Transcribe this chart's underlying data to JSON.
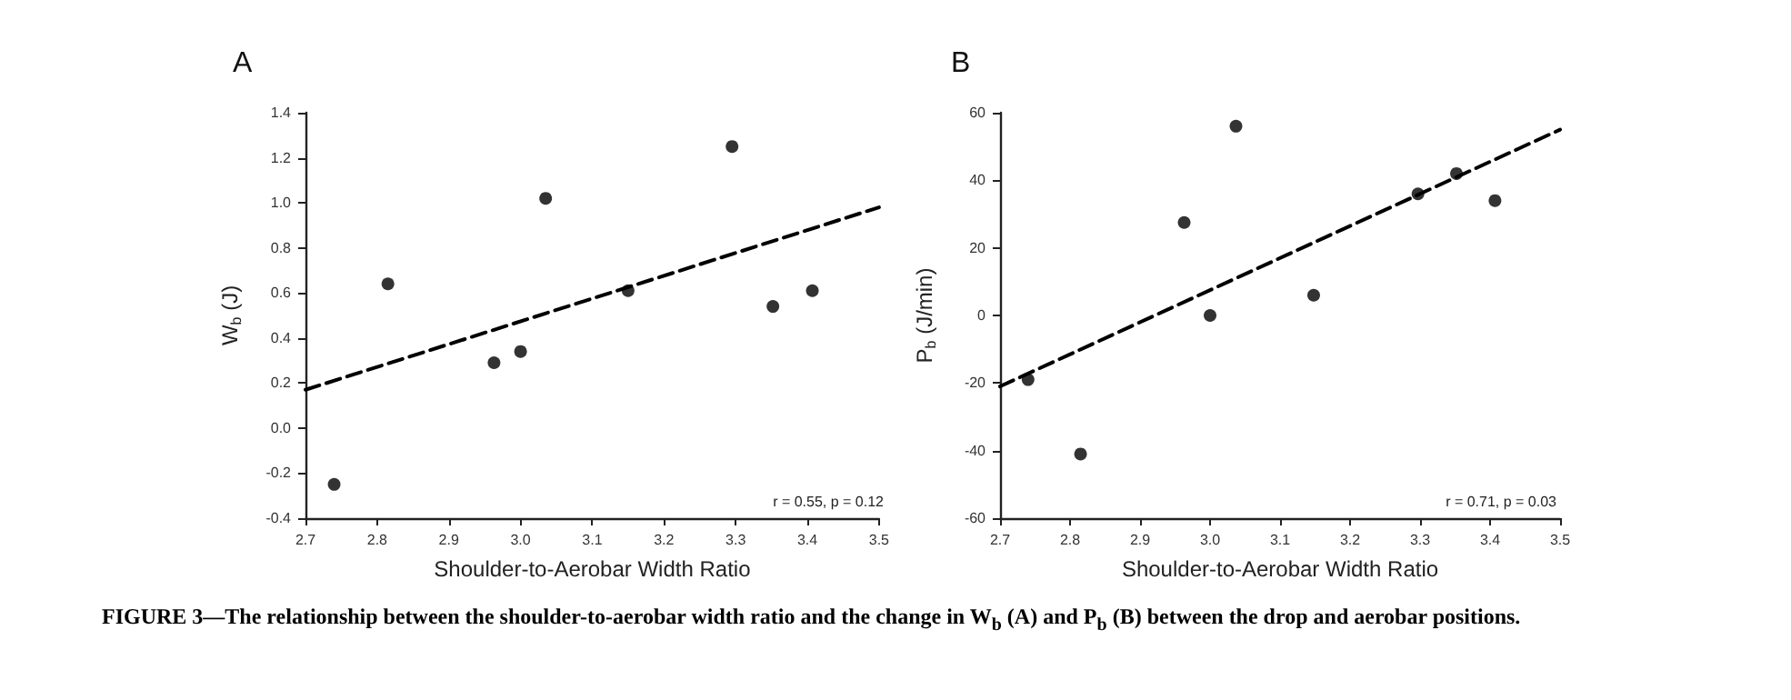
{
  "chart_data": [
    {
      "type": "scatter",
      "title": "A",
      "xlabel": "Shoulder-to-Aerobar Width Ratio",
      "ylabel": "W$_{b}$ (J)",
      "annotations": [
        "r = 0.55, p = 0.12",
        "FIGURE 3—The relationship between the shoulder-to-aerobar width ratio and the change in W$_{b}$ (A) and P$_{b}$ (B) between the drop and aerobar positions."
      ],
      "xlim": [
        2.7,
        3.5
      ],
      "xticks": [
        2.7,
        2.8,
        2.9,
        {
          "value": 3,
          "label": "3.0"
        },
        3.1,
        3.2,
        3.3,
        3.4,
        3.5
      ],
      "ylim": [
        -0.4,
        1.4
      ],
      "yticks": [
        -0.4,
        -0.2,
        {
          "value": 0,
          "label": "0.0"
        },
        0.2,
        0.4,
        0.6,
        0.8,
        {
          "value": 1,
          "label": "1.0"
        },
        1.2,
        1.4
      ],
      "grid": false,
      "marker": "circle",
      "series": [
        {
          "color": "#000000",
          "x": [
            2.74,
            2.815,
            2.963,
            3.0,
            3.035,
            3.15,
            3.295,
            3.352,
            3.407
          ],
          "values": [
            -0.25,
            0.64,
            0.29,
            0.34,
            1.02,
            0.61,
            1.25,
            0.54,
            0.61
          ]
        },
        {
          "type": "line",
          "color": "#000000",
          "marker": "none",
          "line_style": "dashed",
          "x": [
            2.7,
            3.5
          ],
          "values": [
            0.17,
            0.98
          ]
        }
      ]
    },
    {
      "type": "scatter",
      "title": "B",
      "xlabel": "Shoulder-to-Aerobar Width Ratio",
      "ylabel": "P$_{b}$ (J/min)",
      "annotations": [
        "r = 0.71, p = 0.03"
      ],
      "xlim": [
        2.7,
        3.5
      ],
      "xticks": [
        2.7,
        2.8,
        2.9,
        {
          "value": 3,
          "label": "3.0"
        },
        3.1,
        3.2,
        3.3,
        3.4,
        3.5
      ],
      "ylim": [
        -60,
        60
      ],
      "yticks": [
        -60,
        -40,
        -20,
        0,
        20,
        40,
        60
      ],
      "grid": false,
      "marker": "circle",
      "series": [
        {
          "color": "#000000",
          "x": [
            2.74,
            2.815,
            2.963,
            3.0,
            3.037,
            3.148,
            3.297,
            3.352,
            3.407
          ],
          "values": [
            -19,
            -41,
            27.5,
            0,
            56,
            6,
            36,
            42,
            34
          ]
        },
        {
          "type": "line",
          "color": "#000000",
          "marker": "none",
          "line_style": "dashed",
          "x": [
            2.7,
            3.5
          ],
          "values": [
            -21,
            55
          ]
        }
      ]
    }
  ]
}
